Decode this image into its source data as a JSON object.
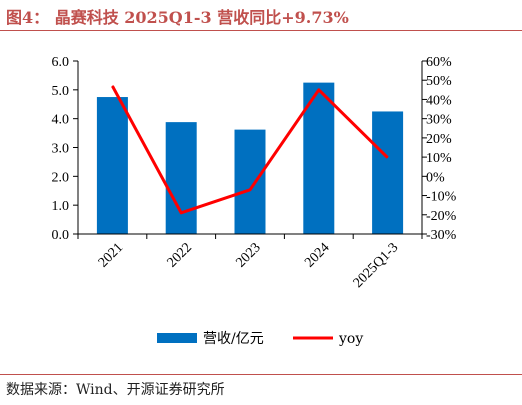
{
  "title": "图4：  晶赛科技 2025Q1-3 营收同比+9.73%",
  "source": "数据来源：Wind、开源证券研究所",
  "colors": {
    "bar": "#0070c0",
    "line": "#ff0000",
    "title": "#c0504d"
  },
  "chart_data": {
    "type": "bar+line",
    "categories": [
      "2021",
      "2022",
      "2023",
      "2024",
      "2025Q1-3"
    ],
    "series": [
      {
        "name": "营收/亿元",
        "type": "bar",
        "axis": "left",
        "values": [
          4.75,
          3.88,
          3.62,
          5.25,
          4.25
        ]
      },
      {
        "name": "yoy",
        "type": "line",
        "axis": "right",
        "values": [
          47,
          -19,
          -7,
          45,
          9.73
        ]
      }
    ],
    "y_left": {
      "min": 0,
      "max": 6,
      "ticks": [
        "0.0",
        "1.0",
        "2.0",
        "3.0",
        "4.0",
        "5.0",
        "6.0"
      ]
    },
    "y_right": {
      "min": -30,
      "max": 60,
      "ticks": [
        "-30%",
        "-20%",
        "-10%",
        "0%",
        "10%",
        "20%",
        "30%",
        "40%",
        "50%",
        "60%"
      ]
    },
    "legend": {
      "position": "bottom"
    },
    "grid": false
  }
}
